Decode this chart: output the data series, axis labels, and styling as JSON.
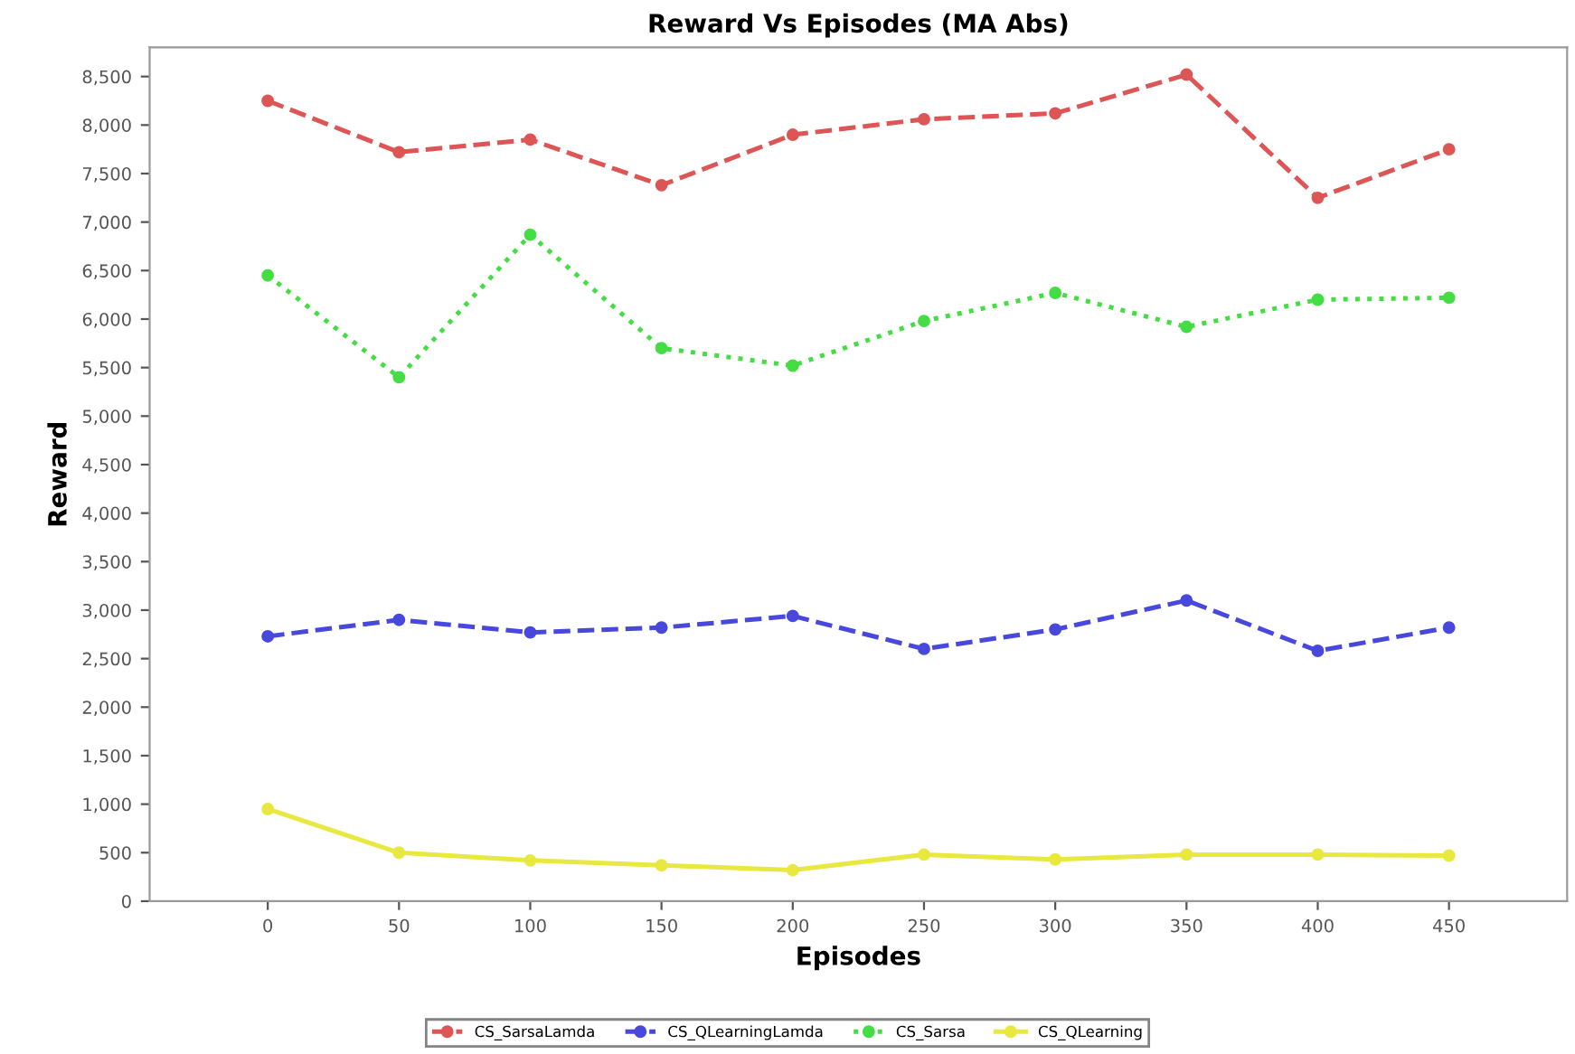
{
  "chart_data": {
    "type": "line",
    "title": "Reward Vs Episodes (MA Abs)",
    "xlabel": "Episodes",
    "ylabel": "Reward",
    "x": [
      0,
      50,
      100,
      150,
      200,
      250,
      300,
      350,
      400,
      450
    ],
    "series": [
      {
        "name": "CS_SarsaLamda",
        "color": "#dd5555",
        "line_style": "dashed",
        "values": [
          8250,
          7720,
          7850,
          7380,
          7900,
          8060,
          8120,
          8520,
          7250,
          7750
        ]
      },
      {
        "name": "CS_QLearningLamda",
        "color": "#4848dd",
        "line_style": "dashed",
        "values": [
          2730,
          2900,
          2770,
          2820,
          2940,
          2600,
          2800,
          3100,
          2580,
          2820
        ]
      },
      {
        "name": "CS_Sarsa",
        "color": "#44dd44",
        "line_style": "dotted",
        "values": [
          6450,
          5400,
          6870,
          5700,
          5520,
          5980,
          6270,
          5920,
          6200,
          6220
        ]
      },
      {
        "name": "CS_QLearning",
        "color": "#e8e840",
        "line_style": "solid",
        "values": [
          950,
          500,
          420,
          370,
          320,
          480,
          430,
          480,
          480,
          470
        ]
      }
    ],
    "xlim": [
      -45,
      495
    ],
    "xticks": [
      0,
      50,
      100,
      150,
      200,
      250,
      300,
      350,
      400,
      450
    ],
    "ylim": [
      0,
      8800
    ],
    "yticks": [
      {
        "value": 0,
        "label": "0"
      },
      {
        "value": 500,
        "label": "500"
      },
      {
        "value": 1000,
        "label": "1,000"
      },
      {
        "value": 1500,
        "label": "1,500"
      },
      {
        "value": 2000,
        "label": "2,000"
      },
      {
        "value": 2500,
        "label": "2,500"
      },
      {
        "value": 3000,
        "label": "3,000"
      },
      {
        "value": 3500,
        "label": "3,500"
      },
      {
        "value": 4000,
        "label": "4,000"
      },
      {
        "value": 4500,
        "label": "4,500"
      },
      {
        "value": 5000,
        "label": "5,000"
      },
      {
        "value": 5500,
        "label": "5,500"
      },
      {
        "value": 6000,
        "label": "6,000"
      },
      {
        "value": 6500,
        "label": "6,500"
      },
      {
        "value": 7000,
        "label": "7,000"
      },
      {
        "value": 7500,
        "label": "7,500"
      },
      {
        "value": 8000,
        "label": "8,000"
      },
      {
        "value": 8500,
        "label": "8,500"
      }
    ],
    "marker": "circle",
    "legend": "bottom",
    "grid": false
  }
}
